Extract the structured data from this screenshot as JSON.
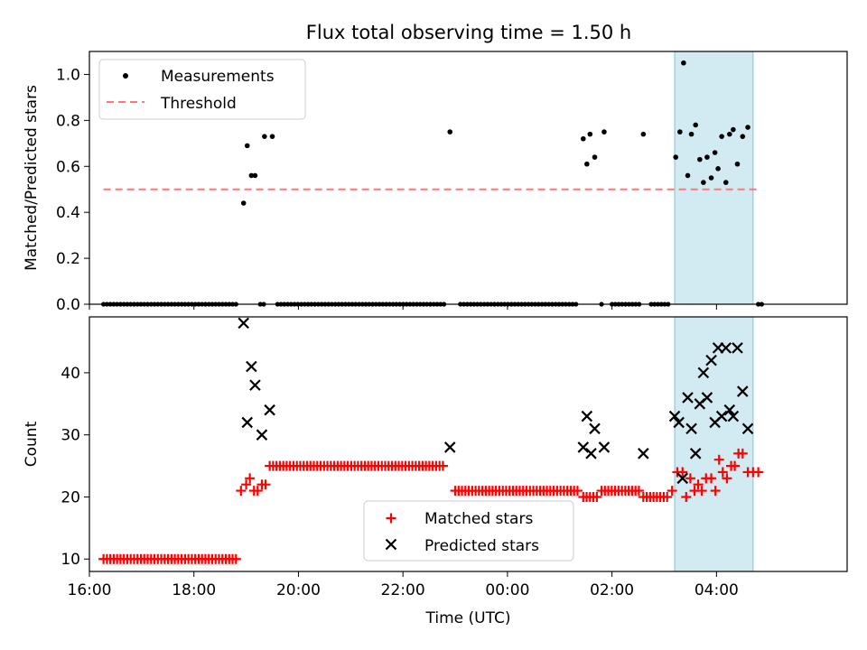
{
  "title": "Flux total observing time = 1.50 h",
  "colors": {
    "measurement": "#000000",
    "threshold": "#ff7777",
    "matched": "#ff0000",
    "predicted": "#000000",
    "highlight": "#add8e6"
  },
  "chart_data": [
    {
      "type": "scatter",
      "panel": "top",
      "title": "Flux total observing time = 1.50 h",
      "xlabel": "",
      "ylabel": "Matched/Predicted stars",
      "xlim": [
        16.0,
        30.5
      ],
      "ylim": [
        0,
        1.1
      ],
      "yticks": [
        0.0,
        0.2,
        0.4,
        0.6,
        0.8,
        1.0
      ],
      "ytick_labels": [
        "0.0",
        "0.2",
        "0.4",
        "0.6",
        "0.8",
        "1.0"
      ],
      "highlight_span": [
        27.2,
        28.7
      ],
      "legend_position": "upper-left",
      "legend": [
        "Measurements",
        "Threshold"
      ],
      "threshold": {
        "name": "Threshold",
        "value": 0.5,
        "x_range": [
          16.27,
          28.78
        ]
      },
      "series": [
        {
          "name": "Measurements",
          "zero_run_ranges": [
            [
              16.27,
              18.85
            ],
            [
              19.27,
              19.35
            ],
            [
              19.6,
              22.8
            ],
            [
              23.1,
              25.35
            ],
            [
              25.8,
              25.85
            ],
            [
              26.0,
              26.52
            ],
            [
              26.75,
              27.12
            ],
            [
              28.8,
              28.9
            ]
          ],
          "points": [
            [
              18.95,
              0.44
            ],
            [
              19.02,
              0.69
            ],
            [
              19.1,
              0.56
            ],
            [
              19.17,
              0.56
            ],
            [
              19.35,
              0.73
            ],
            [
              19.5,
              0.73
            ],
            [
              22.9,
              0.75
            ],
            [
              25.45,
              0.72
            ],
            [
              25.52,
              0.61
            ],
            [
              25.58,
              0.74
            ],
            [
              25.67,
              0.64
            ],
            [
              25.85,
              0.75
            ],
            [
              26.6,
              0.74
            ],
            [
              27.22,
              0.64
            ],
            [
              27.3,
              0.75
            ],
            [
              27.37,
              1.05
            ],
            [
              27.45,
              0.56
            ],
            [
              27.52,
              0.74
            ],
            [
              27.6,
              0.78
            ],
            [
              27.68,
              0.63
            ],
            [
              27.75,
              0.53
            ],
            [
              27.82,
              0.64
            ],
            [
              27.9,
              0.55
            ],
            [
              27.97,
              0.66
            ],
            [
              28.03,
              0.59
            ],
            [
              28.1,
              0.73
            ],
            [
              28.18,
              0.53
            ],
            [
              28.25,
              0.74
            ],
            [
              28.32,
              0.76
            ],
            [
              28.4,
              0.61
            ],
            [
              28.5,
              0.73
            ],
            [
              28.6,
              0.77
            ]
          ]
        }
      ]
    },
    {
      "type": "scatter",
      "panel": "bottom",
      "xlabel": "Time (UTC)",
      "ylabel": "Count",
      "xlim": [
        16.0,
        30.5
      ],
      "ylim": [
        8,
        49
      ],
      "yticks": [
        10,
        20,
        30,
        40
      ],
      "ytick_labels": [
        "10",
        "20",
        "30",
        "40"
      ],
      "xticks": [
        16,
        18,
        20,
        22,
        24,
        26,
        28
      ],
      "xtick_labels": [
        "16:00",
        "18:00",
        "20:00",
        "22:00",
        "00:00",
        "02:00",
        "04:00"
      ],
      "highlight_span": [
        27.2,
        28.7
      ],
      "legend_position": "lower-center",
      "legend": [
        "Matched stars",
        "Predicted stars"
      ],
      "series": [
        {
          "name": "Matched stars",
          "marker": "plus",
          "constant_runs": [
            {
              "range": [
                16.27,
                18.85
              ],
              "value": 10
            },
            {
              "range": [
                19.45,
                22.8
              ],
              "value": 25
            },
            {
              "range": [
                23.0,
                25.35
              ],
              "value": 21
            },
            {
              "range": [
                25.45,
                25.75
              ],
              "value": 20
            },
            {
              "range": [
                25.8,
                26.55
              ],
              "value": 21
            },
            {
              "range": [
                26.6,
                27.1
              ],
              "value": 20
            }
          ],
          "points": [
            [
              18.9,
              21
            ],
            [
              19.0,
              22
            ],
            [
              19.07,
              23
            ],
            [
              19.15,
              21
            ],
            [
              19.22,
              21
            ],
            [
              19.3,
              22
            ],
            [
              19.37,
              22
            ],
            [
              27.15,
              21
            ],
            [
              27.25,
              24
            ],
            [
              27.35,
              24
            ],
            [
              27.42,
              20
            ],
            [
              27.5,
              23
            ],
            [
              27.58,
              21
            ],
            [
              27.65,
              22
            ],
            [
              27.72,
              21
            ],
            [
              27.8,
              23
            ],
            [
              27.9,
              23
            ],
            [
              27.98,
              21
            ],
            [
              28.05,
              26
            ],
            [
              28.12,
              24
            ],
            [
              28.2,
              23
            ],
            [
              28.28,
              25
            ],
            [
              28.35,
              25
            ],
            [
              28.42,
              27
            ],
            [
              28.5,
              27
            ],
            [
              28.6,
              24
            ],
            [
              28.7,
              24
            ],
            [
              28.8,
              24
            ]
          ]
        },
        {
          "name": "Predicted stars",
          "marker": "x",
          "points": [
            [
              18.95,
              48
            ],
            [
              19.02,
              32
            ],
            [
              19.1,
              41
            ],
            [
              19.17,
              38
            ],
            [
              19.3,
              30
            ],
            [
              19.45,
              34
            ],
            [
              22.9,
              28
            ],
            [
              25.45,
              28
            ],
            [
              25.52,
              33
            ],
            [
              25.6,
              27
            ],
            [
              25.67,
              31
            ],
            [
              25.85,
              28
            ],
            [
              26.6,
              27
            ],
            [
              27.2,
              33
            ],
            [
              27.28,
              32
            ],
            [
              27.35,
              23
            ],
            [
              27.45,
              36
            ],
            [
              27.52,
              31
            ],
            [
              27.6,
              27
            ],
            [
              27.68,
              35
            ],
            [
              27.75,
              40
            ],
            [
              27.82,
              36
            ],
            [
              27.9,
              42
            ],
            [
              27.97,
              32
            ],
            [
              28.03,
              44
            ],
            [
              28.1,
              33
            ],
            [
              28.18,
              44
            ],
            [
              28.25,
              34
            ],
            [
              28.32,
              33
            ],
            [
              28.4,
              44
            ],
            [
              28.5,
              37
            ],
            [
              28.6,
              31
            ]
          ]
        }
      ]
    }
  ]
}
